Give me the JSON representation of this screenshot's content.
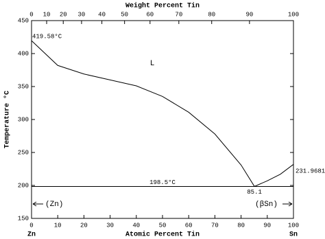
{
  "chart_data": {
    "type": "line",
    "title_top": "Weight Percent Tin",
    "xlabel": "Atomic Percent Tin",
    "ylabel": "Temperature °C",
    "x": [
      0,
      10,
      20,
      30,
      40,
      50,
      60,
      70,
      80,
      85.1,
      90,
      95,
      100
    ],
    "values": [
      419.58,
      382,
      369,
      360,
      351,
      335,
      311,
      278,
      231,
      198.5,
      207,
      217,
      231.9681
    ],
    "value_labels": [
      "419.58°C",
      null,
      null,
      null,
      null,
      null,
      null,
      null,
      null,
      null,
      null,
      null,
      "231.9681°C"
    ],
    "color": "#000000",
    "xlim": [
      0,
      100
    ],
    "xticks": [
      0,
      10,
      20,
      30,
      40,
      50,
      60,
      70,
      80,
      90,
      100
    ],
    "x2ticks": [
      0,
      10,
      20,
      30,
      40,
      50,
      60,
      70,
      80,
      90,
      100
    ],
    "ylim": [
      150,
      450
    ],
    "yticks": [
      150,
      200,
      250,
      300,
      350,
      400,
      450
    ],
    "eutectic": {
      "temperature": 198.5,
      "temperature_label": "198.5°C",
      "x": 85.1,
      "x_label": "85.1"
    },
    "phases": [
      "L",
      "(Zn)",
      "(βSn)"
    ],
    "elements": [
      "Zn",
      "Sn"
    ]
  }
}
